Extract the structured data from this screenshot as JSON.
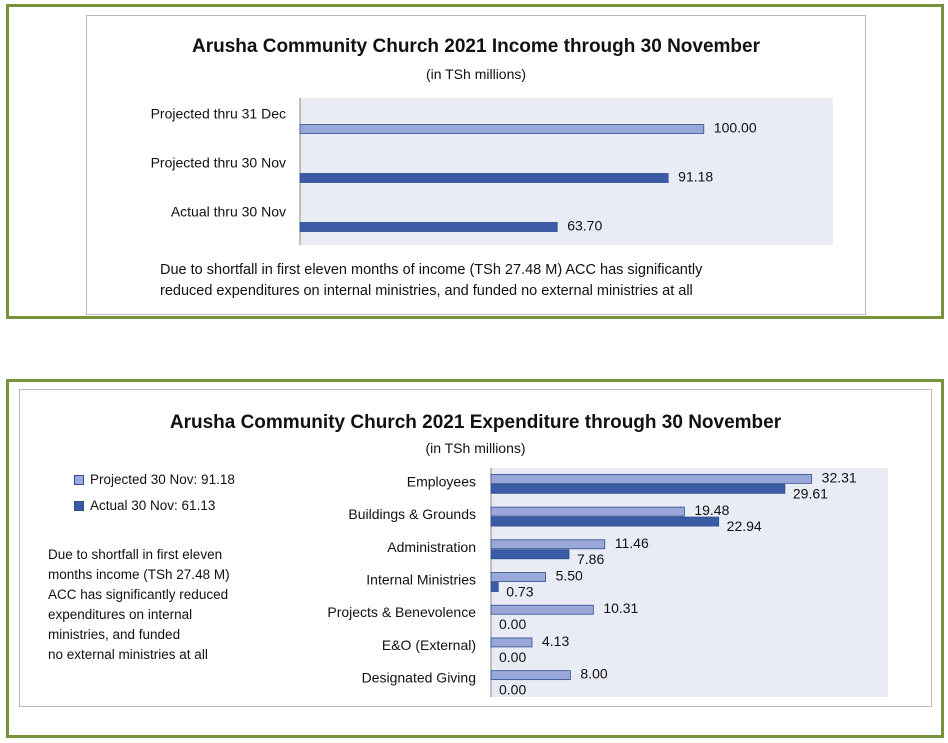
{
  "colors": {
    "frame": "#77933c",
    "plot_bg": "#e9ebf5",
    "projected": "#99a8d8",
    "actual": "#3b5ba7"
  },
  "income": {
    "title": "Arusha Community Church 2021 Income through 30 November",
    "subtitle": "(in TSh millions)",
    "note_lines": [
      "Due to shortfall in first eleven months of income (TSh 27.48 M) ACC has significantly",
      "reduced expenditures on internal ministries, and funded no external ministries at all"
    ]
  },
  "expenditure": {
    "title": "Arusha Community Church 2021 Expenditure through 30 November",
    "subtitle": "(in TSh millions)",
    "legend": {
      "projected": "Projected 30 Nov: 91.18",
      "actual": "Actual 30 Nov: 61.13"
    },
    "note_lines": [
      "Due to shortfall in first eleven",
      "months income (TSh 27.48 M)",
      "ACC has significantly reduced",
      "expenditures on internal",
      "ministries, and funded",
      "no external ministries at all"
    ]
  },
  "chart_data": [
    {
      "type": "bar",
      "orientation": "horizontal",
      "title": "Arusha Community Church 2021 Income through 30 November",
      "subtitle": "(in TSh millions)",
      "categories": [
        "Projected thru 31 Dec",
        "Projected thru 30 Nov",
        "Actual thru 30 Nov"
      ],
      "values": [
        100.0,
        91.18,
        63.7
      ],
      "labels": [
        "100.00",
        "91.18",
        "63.70"
      ],
      "xlim": [
        0,
        132
      ],
      "grid": false
    },
    {
      "type": "bar",
      "orientation": "horizontal",
      "title": "Arusha Community Church 2021 Expenditure through 30 November",
      "subtitle": "(in TSh millions)",
      "categories": [
        "Employees",
        "Buildings & Grounds",
        "Administration",
        "Internal Ministries",
        "Projects & Benevolence",
        "E&O (External)",
        "Designated Giving"
      ],
      "series": [
        {
          "name": "Projected 30 Nov: 91.18",
          "values": [
            32.31,
            19.48,
            11.46,
            5.5,
            10.31,
            4.13,
            8.0
          ],
          "labels": [
            "32.31",
            "19.48",
            "11.46",
            "5.50",
            "10.31",
            "4.13",
            "8.00"
          ]
        },
        {
          "name": "Actual 30 Nov: 61.13",
          "values": [
            29.61,
            22.94,
            7.86,
            0.73,
            0.0,
            0.0,
            0.0
          ],
          "labels": [
            "29.61",
            "22.94",
            "7.86",
            "0.73",
            "0.00",
            "0.00",
            "0.00"
          ]
        }
      ],
      "xlim": [
        0,
        40
      ],
      "legend": "left",
      "grid": false
    }
  ]
}
